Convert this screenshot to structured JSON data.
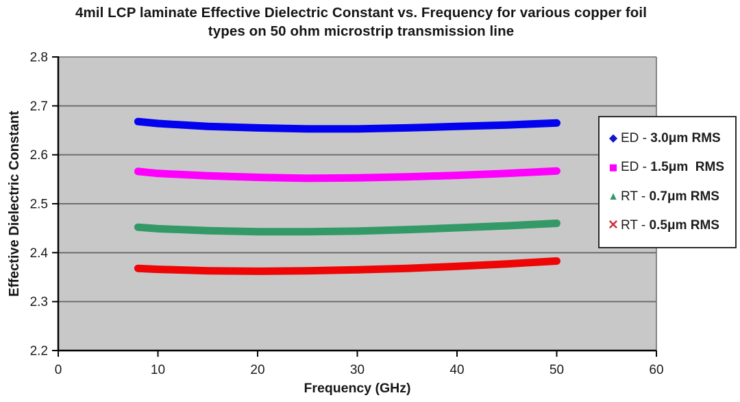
{
  "chart_data": {
    "type": "line",
    "title": "4mil LCP laminate Effective Dielectric Constant vs. Frequency for various copper foil types on 50 ohm microstrip transmission line",
    "title_lines": [
      "4mil LCP laminate Effective Dielectric Constant vs. Frequency for various copper foil",
      "types on 50 ohm microstrip transmission line"
    ],
    "xlabel": "Frequency (GHz)",
    "ylabel": "Effective Dielectric Constant",
    "xlim": [
      0,
      60
    ],
    "ylim": [
      2.2,
      2.8
    ],
    "x_ticks": [
      0,
      10,
      20,
      30,
      40,
      50,
      60
    ],
    "y_ticks": [
      2.2,
      2.3,
      2.4,
      2.5,
      2.6,
      2.7,
      2.8
    ],
    "grid": "horizontal",
    "plot_background": "#c8c8c8",
    "gridline_color": "#6e6e6e",
    "axis_color": "#000000",
    "legend": {
      "position": "right",
      "background": "#ffffff",
      "border_color": "#2a2a2a"
    },
    "x": [
      8,
      10,
      15,
      20,
      25,
      30,
      35,
      40,
      45,
      50
    ],
    "series": [
      {
        "name": "ED - 3.0μm RMS",
        "label_prefix": "ED - ",
        "label_bold": "3.0μm RMS",
        "marker": "diamond",
        "marker_glyph": "◆",
        "marker_color": "#1414cc",
        "line_color": "#0202ee",
        "values": [
          2.668,
          2.664,
          2.658,
          2.655,
          2.653,
          2.653,
          2.655,
          2.658,
          2.661,
          2.665
        ]
      },
      {
        "name": "ED - 1.5μm  RMS",
        "label_prefix": "ED - ",
        "label_bold": "1.5μm  RMS",
        "marker": "square",
        "marker_glyph": "■",
        "marker_color": "#ff00ff",
        "line_color": "#ff00ff",
        "values": [
          2.566,
          2.562,
          2.557,
          2.554,
          2.552,
          2.553,
          2.555,
          2.558,
          2.562,
          2.567
        ]
      },
      {
        "name": "RT - 0.7μm RMS",
        "label_prefix": "RT - ",
        "label_bold": "0.7μm RMS",
        "marker": "triangle",
        "marker_glyph": "▲",
        "marker_color": "#339966",
        "line_color": "#339966",
        "values": [
          2.452,
          2.449,
          2.445,
          2.443,
          2.443,
          2.444,
          2.447,
          2.451,
          2.455,
          2.46
        ]
      },
      {
        "name": "RT - 0.5μm RMS",
        "label_prefix": "RT - ",
        "label_bold": "0.5μm RMS",
        "marker": "x",
        "marker_glyph": "✕",
        "marker_color": "#cc3344",
        "line_color": "#ee0505",
        "values": [
          2.368,
          2.366,
          2.363,
          2.362,
          2.363,
          2.365,
          2.368,
          2.372,
          2.377,
          2.383
        ]
      }
    ]
  }
}
